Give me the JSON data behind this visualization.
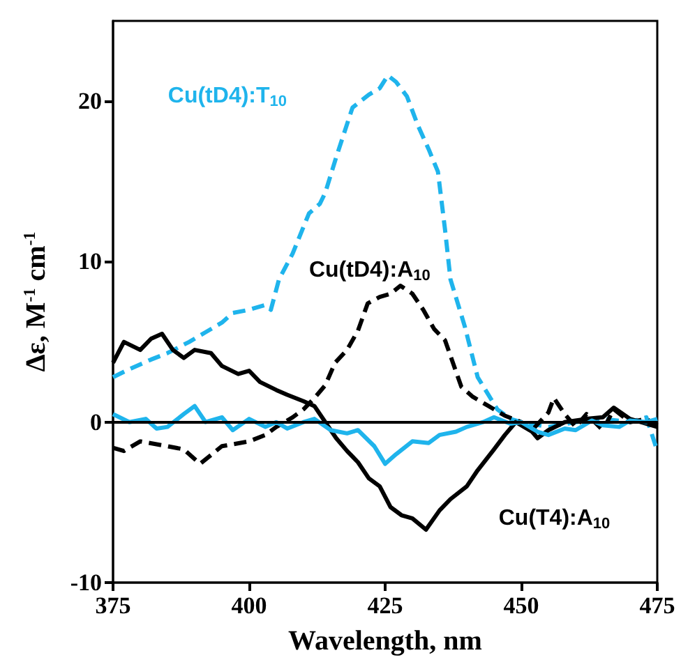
{
  "chart_data": {
    "type": "line",
    "xlabel": "Wavelength, nm",
    "ylabel": "Δε, M$^{-1}$ cm$^{-1}$",
    "xlim": [
      375,
      475
    ],
    "xticks": [
      375,
      400,
      425,
      450,
      475
    ],
    "ylim": [
      -10,
      25
    ],
    "yticks": [
      -10,
      0,
      10,
      20
    ],
    "grid": false,
    "marker": "none",
    "ref_lines": [
      {
        "axis": "y",
        "value": 0,
        "color": "#000000",
        "line_style": "solid"
      }
    ],
    "series": [
      {
        "name": "Cu(tD4):T$_{10}$",
        "color": "#1fb4ec",
        "line_style": "dashed",
        "x": [
          375,
          378,
          382,
          385,
          389,
          392,
          395,
          397,
          400,
          403,
          404,
          405.5,
          408,
          411,
          413,
          414,
          416,
          419,
          422,
          424,
          425.5,
          427,
          429,
          431,
          433,
          434.7,
          436,
          437,
          439.6,
          442,
          445.6,
          448,
          450,
          455,
          460,
          465,
          470,
          473,
          475
        ],
        "values": [
          2.8,
          3.3,
          3.9,
          4.3,
          5.0,
          5.6,
          6.2,
          6.8,
          7.0,
          7.3,
          7.0,
          8.9,
          10.5,
          13.0,
          13.6,
          14.3,
          16.5,
          19.6,
          20.4,
          20.8,
          21.6,
          21.2,
          20.3,
          18.5,
          17.0,
          15.6,
          12.0,
          8.9,
          6.0,
          2.8,
          0.8,
          0.2,
          0.0,
          -0.3,
          0.0,
          0.2,
          0.0,
          0.3,
          -1.8
        ]
      },
      {
        "name": "Cu(tD4):A$_{10}$",
        "color": "#000000",
        "line_style": "dashed",
        "x": [
          375,
          377,
          380,
          385,
          388,
          391,
          395,
          400,
          403,
          405,
          408,
          410,
          412,
          414,
          415.8,
          418,
          420,
          421.8,
          424,
          426,
          427.8,
          430,
          432,
          434,
          436,
          439,
          441,
          444,
          447,
          450,
          452,
          455,
          456,
          458,
          460,
          462,
          465,
          467,
          470,
          473,
          475
        ],
        "values": [
          -1.6,
          -1.8,
          -1.2,
          -1.5,
          -1.7,
          -2.6,
          -1.5,
          -1.2,
          -0.8,
          -0.3,
          0.3,
          0.8,
          1.5,
          2.3,
          3.7,
          4.5,
          5.7,
          7.4,
          7.8,
          8.0,
          8.5,
          8.0,
          7.0,
          5.8,
          5.1,
          2.2,
          1.6,
          1.0,
          0.4,
          0.0,
          -0.5,
          0.6,
          1.5,
          0.5,
          -0.3,
          0.5,
          -0.5,
          0.8,
          0.0,
          0.2,
          -0.2
        ]
      },
      {
        "name": "Cu(T4):A$_{10}$",
        "color": "#000000",
        "line_style": "solid",
        "x": [
          375,
          377,
          380,
          382,
          384,
          386,
          388,
          390,
          393,
          395,
          398,
          400,
          402,
          405,
          407,
          410,
          412,
          414,
          416,
          418,
          420,
          422,
          424,
          426,
          428,
          430,
          432.5,
          435,
          437,
          440,
          442,
          445,
          447,
          449,
          452,
          453,
          455,
          458,
          462,
          465,
          467,
          470,
          475
        ],
        "values": [
          3.7,
          5.0,
          4.5,
          5.2,
          5.5,
          4.5,
          4.0,
          4.5,
          4.3,
          3.5,
          3.0,
          3.2,
          2.5,
          2.0,
          1.7,
          1.3,
          1.0,
          0.0,
          -1.0,
          -1.8,
          -2.5,
          -3.5,
          -4.0,
          -5.3,
          -5.8,
          -6.0,
          -6.7,
          -5.5,
          -4.8,
          -4.0,
          -3.0,
          -1.7,
          -0.8,
          0.0,
          -0.6,
          -1.0,
          -0.5,
          0.0,
          0.2,
          0.3,
          0.9,
          0.2,
          -0.3
        ]
      },
      {
        "color": "#1fb4ec",
        "line_style": "solid",
        "x": [
          375,
          378,
          381,
          383,
          385,
          388,
          390,
          392,
          395,
          397,
          400,
          403,
          405,
          407,
          410,
          412,
          415,
          418,
          420,
          423,
          425,
          427,
          430,
          433,
          435,
          438,
          440,
          443,
          445,
          448,
          450,
          453,
          455,
          458,
          460,
          463,
          465,
          468,
          470,
          473,
          475
        ],
        "values": [
          0.5,
          0.0,
          0.2,
          -0.4,
          -0.3,
          0.5,
          1.0,
          0.0,
          0.3,
          -0.5,
          0.2,
          -0.3,
          0.0,
          -0.4,
          0.0,
          0.2,
          -0.5,
          -0.7,
          -0.5,
          -1.5,
          -2.6,
          -2.0,
          -1.2,
          -1.3,
          -0.8,
          -0.6,
          -0.3,
          0.0,
          0.3,
          -0.1,
          0.0,
          -0.6,
          -0.8,
          -0.4,
          -0.5,
          0.1,
          -0.2,
          -0.3,
          0.1,
          0.0,
          0.2
        ]
      }
    ]
  }
}
